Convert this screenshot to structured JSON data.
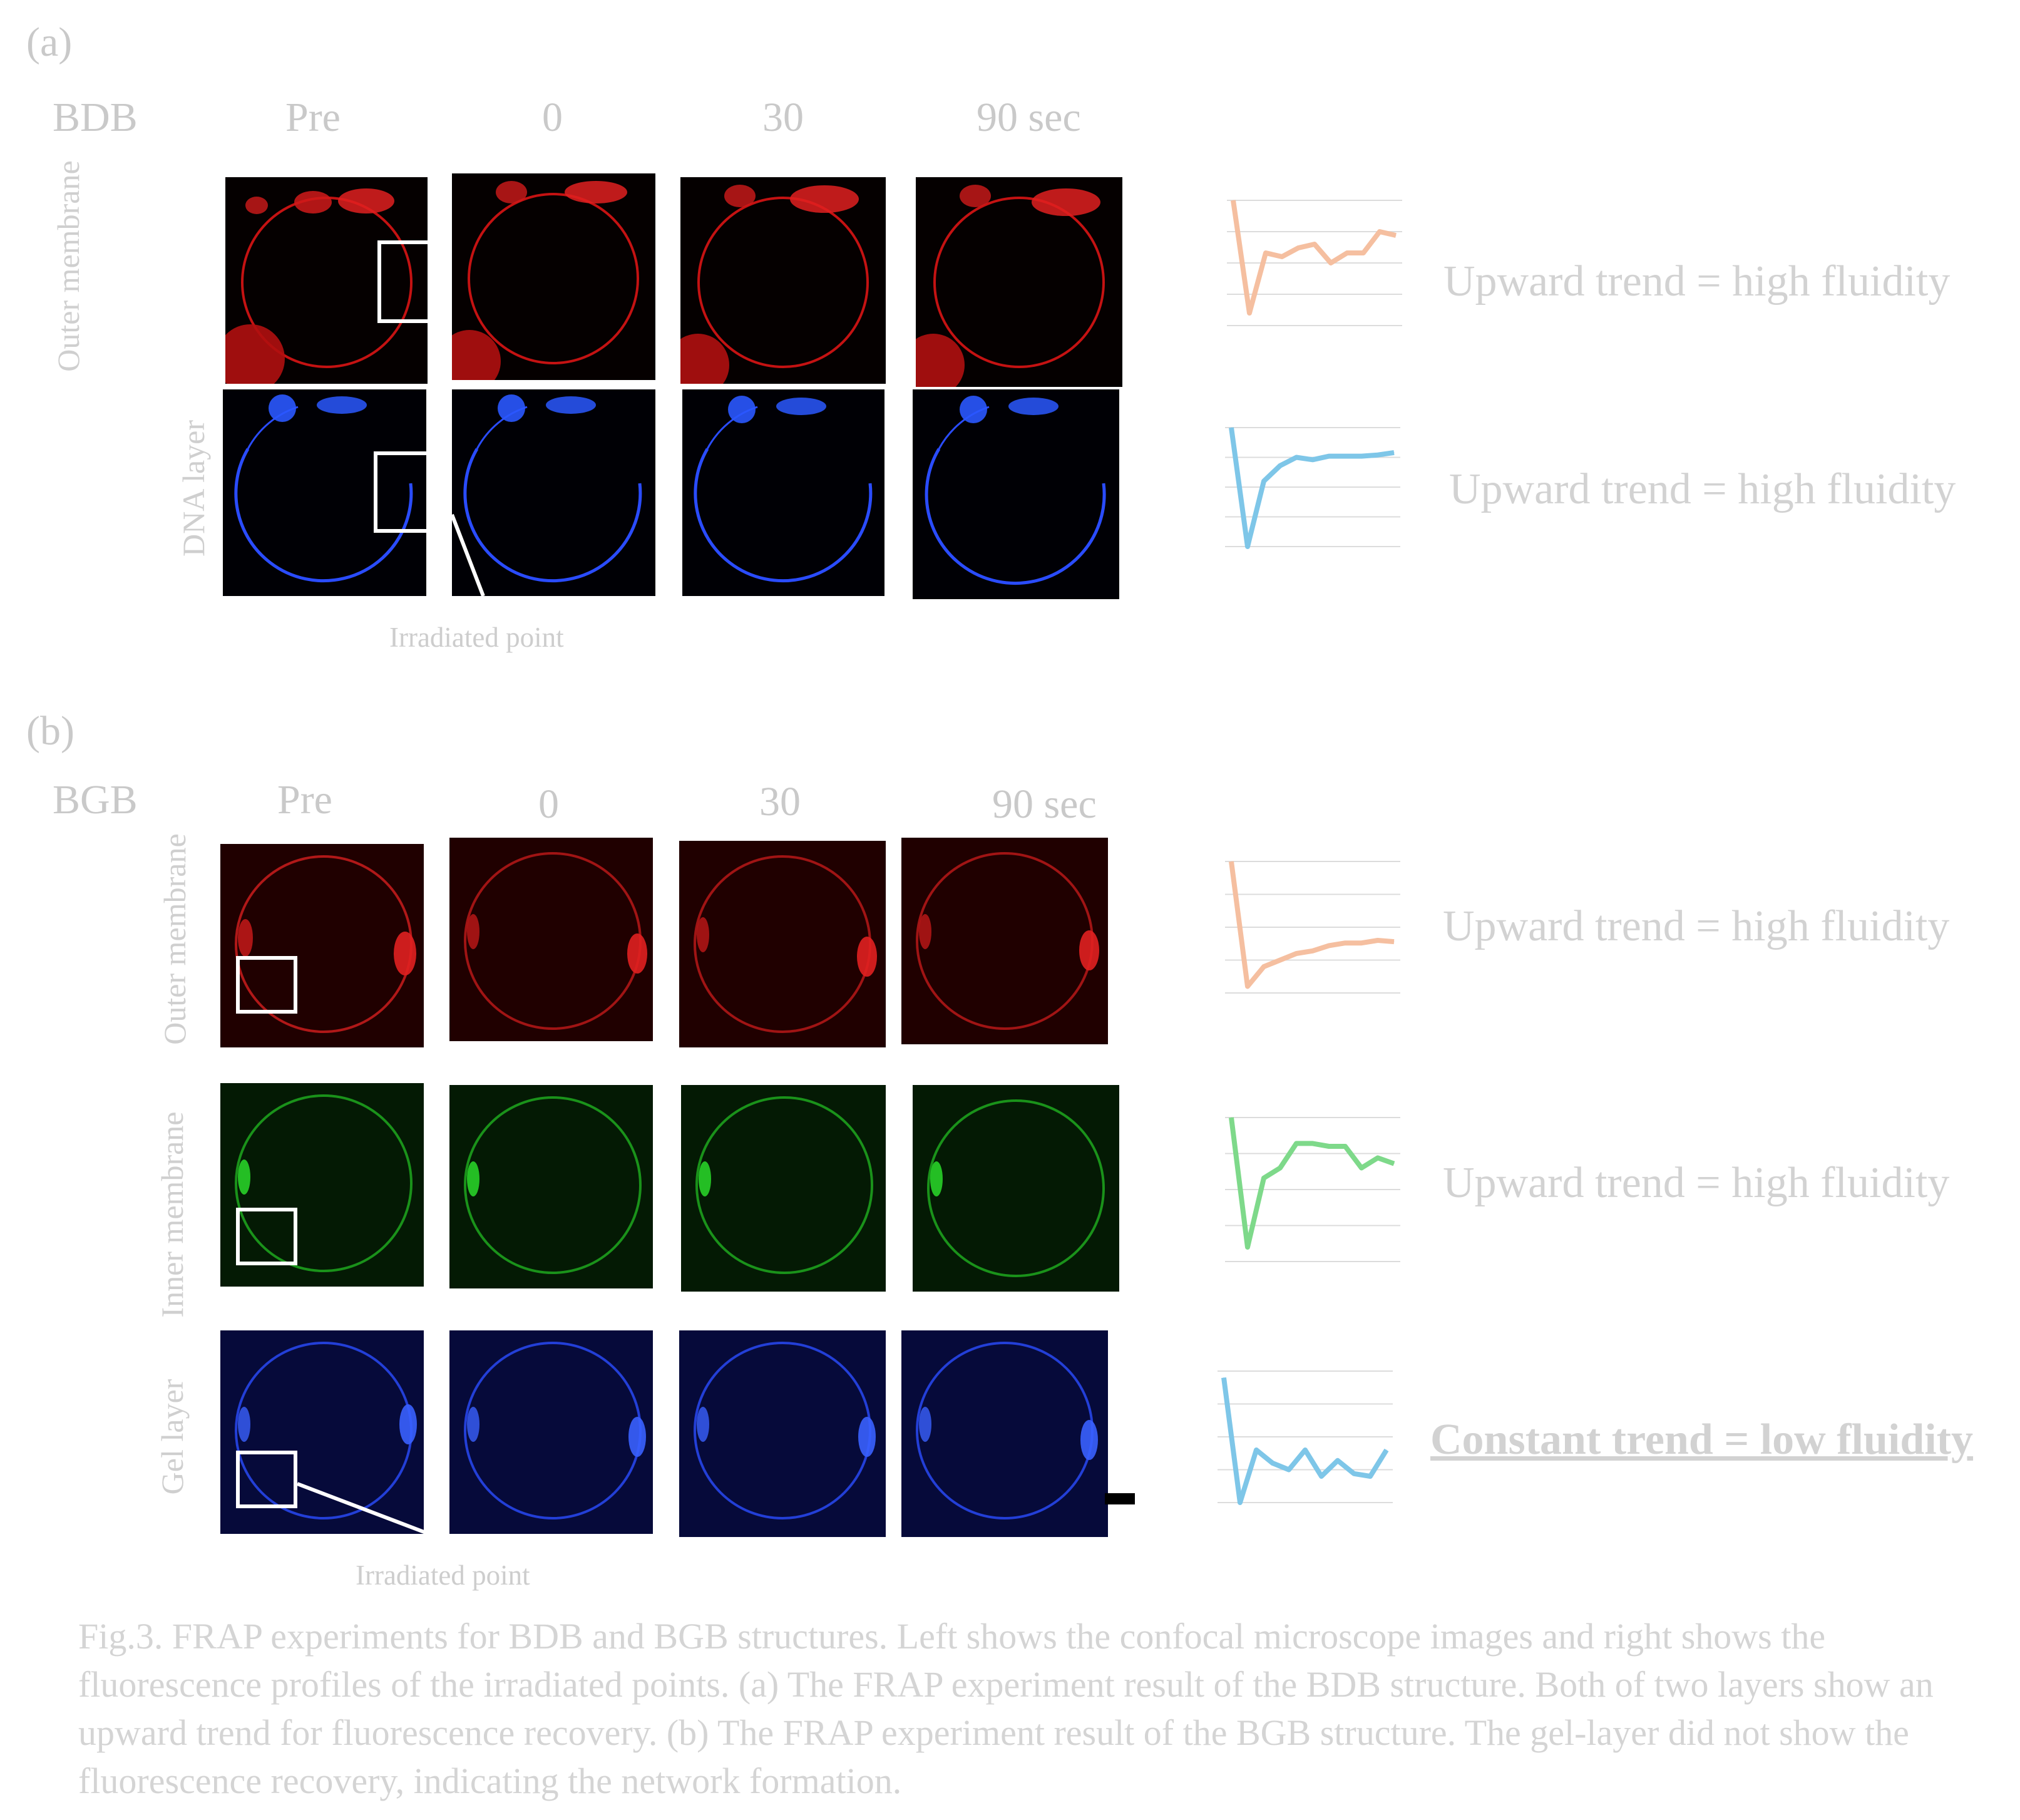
{
  "panel_a": {
    "label": "(a)",
    "structure": "BDB",
    "time_labels": [
      "Pre",
      "0",
      "30",
      "90 sec"
    ],
    "row_labels": [
      "Outer membrane",
      "DNA layer"
    ],
    "trends": [
      "Upward trend = high fluidity",
      "Upward trend = high fluidity"
    ],
    "irradiated_label": "Irradiated point"
  },
  "panel_b": {
    "label": "(b)",
    "structure": "BGB",
    "time_labels": [
      "Pre",
      "0",
      "30",
      "90 sec"
    ],
    "row_labels": [
      "Outer membrane",
      "Inner  membrane",
      "Gel layer"
    ],
    "trends": [
      "Upward trend = high fluidity",
      "Upward trend = high fluidity",
      "Constant trend = low fluidity"
    ],
    "irradiated_label": "Irradiated point"
  },
  "caption": "Fig.3. FRAP experiments for BDB and BGB structures. Left shows the confocal microscope images and right shows the fluorescence profiles of the irradiated points. (a) The FRAP experiment result of the BDB structure. Both of two layers show an upward trend for fluorescence recovery. (b) The FRAP experiment result of the BGB structure. The gel-layer did not show the fluorescence recovery, indicating the network formation.",
  "colors": {
    "red_channel": "#e01818",
    "blue_channel": "#2a4cff",
    "green_channel": "#22c422",
    "trend_orange": "#f5bfa0",
    "trend_blue": "#7ec6e8",
    "trend_green": "#7ed98a"
  },
  "chart_data": [
    {
      "type": "line",
      "panel": "a",
      "row": "Outer membrane",
      "color": "#f5bfa0",
      "values": [
        1.0,
        0.1,
        0.58,
        0.55,
        0.62,
        0.65,
        0.5,
        0.58,
        0.58,
        0.75,
        0.72
      ]
    },
    {
      "type": "line",
      "panel": "a",
      "row": "DNA layer",
      "color": "#7ec6e8",
      "values": [
        1.0,
        0.0,
        0.55,
        0.68,
        0.75,
        0.73,
        0.76,
        0.76,
        0.76,
        0.77,
        0.79
      ]
    },
    {
      "type": "line",
      "panel": "b",
      "row": "Outer membrane",
      "color": "#f5bfa0",
      "values": [
        1.0,
        0.05,
        0.2,
        0.25,
        0.3,
        0.32,
        0.36,
        0.38,
        0.38,
        0.4,
        0.39
      ]
    },
    {
      "type": "line",
      "panel": "b",
      "row": "Inner  membrane",
      "color": "#7ed98a",
      "values": [
        1.0,
        0.1,
        0.58,
        0.65,
        0.82,
        0.82,
        0.8,
        0.8,
        0.65,
        0.72,
        0.68
      ]
    },
    {
      "type": "line",
      "panel": "b",
      "row": "Gel layer",
      "color": "#7ec6e8",
      "values": [
        0.95,
        0.0,
        0.4,
        0.3,
        0.25,
        0.4,
        0.2,
        0.32,
        0.22,
        0.2,
        0.4
      ]
    }
  ]
}
